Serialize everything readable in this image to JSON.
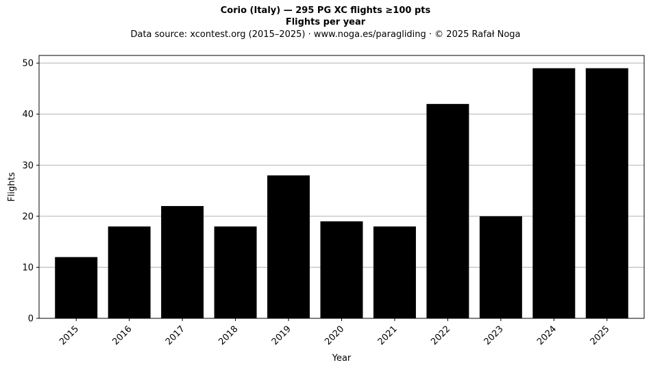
{
  "header": {
    "title_line1": "Corio (Italy)  —  295 PG XC flights ≥100 pts",
    "title_line2": "Flights per year",
    "subtitle": "Data source: xcontest.org (2015–2025)  ·  www.noga.es/paragliding  ·  © 2025 Rafał Noga"
  },
  "chart_data": {
    "type": "bar",
    "title": "Corio (Italy)  —  295 PG XC flights ≥100 pts",
    "subtitle": "Flights per year",
    "xlabel": "Year",
    "ylabel": "Flights",
    "categories": [
      "2015",
      "2016",
      "2017",
      "2018",
      "2019",
      "2020",
      "2021",
      "2022",
      "2023",
      "2024",
      "2025"
    ],
    "values": [
      12,
      18,
      22,
      18,
      28,
      19,
      18,
      42,
      20,
      49,
      49
    ],
    "ylim": [
      0,
      51.5
    ],
    "yticks": [
      0,
      10,
      20,
      30,
      40,
      50
    ],
    "grid": "y",
    "bar_color": "#000000",
    "grid_color": "#b0b0b0"
  }
}
